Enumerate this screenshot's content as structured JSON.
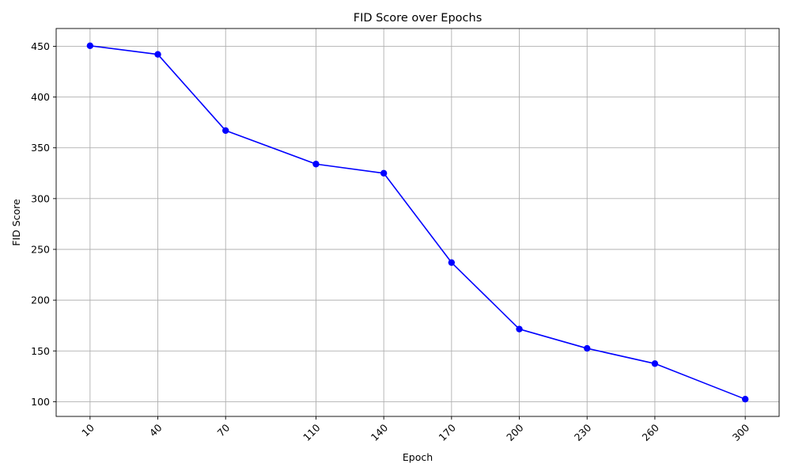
{
  "chart_data": {
    "type": "line",
    "title": "FID Score over Epochs",
    "xlabel": "Epoch",
    "ylabel": "FID Score",
    "x": [
      10,
      40,
      70,
      110,
      140,
      170,
      200,
      230,
      260,
      300
    ],
    "series": [
      {
        "values": [
          450.5,
          442,
          367,
          334,
          325,
          237,
          171.5,
          152.5,
          137.5,
          102.5
        ]
      }
    ],
    "xticks": [
      "10",
      "40",
      "70",
      "110",
      "140",
      "170",
      "200",
      "230",
      "260",
      "300"
    ],
    "yticks": [
      "100",
      "150",
      "200",
      "250",
      "300",
      "350",
      "400",
      "450"
    ],
    "ylim": [
      85.5,
      467.5
    ],
    "xlim": [
      -5,
      315
    ],
    "grid": true,
    "xtick_rotation": -45,
    "line_color": "#0000ff",
    "marker": "circle"
  }
}
